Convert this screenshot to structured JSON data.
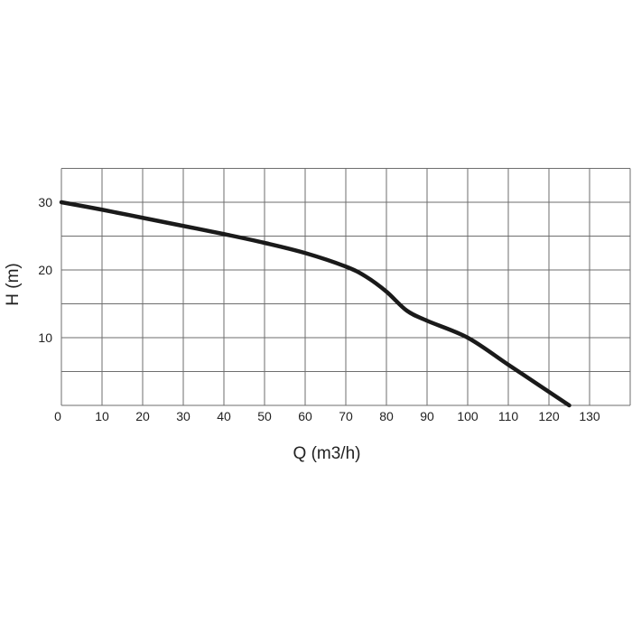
{
  "chart_data": {
    "type": "line",
    "title": "",
    "xlabel": "Q (m3/h)",
    "ylabel": "H (m)",
    "xlim": [
      0,
      130
    ],
    "ylim": [
      0,
      35
    ],
    "x_ticks": [
      0,
      10,
      20,
      30,
      40,
      50,
      60,
      70,
      80,
      90,
      100,
      110,
      120,
      130
    ],
    "y_ticks": [
      10,
      20,
      30
    ],
    "x_grid": [
      0,
      10,
      20,
      30,
      40,
      50,
      60,
      70,
      80,
      90,
      100,
      110,
      120,
      130,
      140
    ],
    "y_grid": [
      0,
      5,
      10,
      15,
      20,
      25,
      30,
      35
    ],
    "grid": true,
    "series": [
      {
        "x": [
          0,
          10,
          20,
          30,
          40,
          50,
          60,
          70,
          75,
          80,
          85,
          90,
          100,
          110,
          120,
          125
        ],
        "y": [
          30,
          28.9,
          27.7,
          26.5,
          25.3,
          24.0,
          22.5,
          20.5,
          19.0,
          16.8,
          14.0,
          12.5,
          10.0,
          6.0,
          2.0,
          0
        ]
      }
    ],
    "color": "#1a1a1a"
  }
}
